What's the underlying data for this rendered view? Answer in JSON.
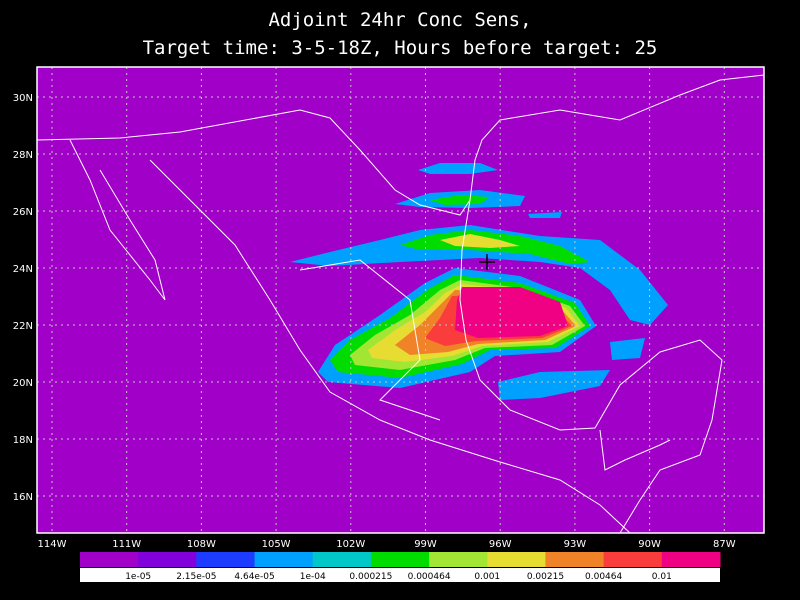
{
  "title": {
    "line1": "Adjoint 24hr Conc Sens,",
    "line2": "Target time: 3-5-18Z, Hours before target: 25"
  },
  "map": {
    "latitude_labels": [
      "30N",
      "28N",
      "26N",
      "24N",
      "22N",
      "20N",
      "18N",
      "16N"
    ],
    "longitude_labels": [
      "114W",
      "111W",
      "108W",
      "105W",
      "102W",
      "99W",
      "96W",
      "93W",
      "90W",
      "87W"
    ]
  },
  "colorbar": {
    "colors": [
      "#a000c8",
      "#8200dc",
      "#1e3cff",
      "#00a0ff",
      "#00c8c8",
      "#00dc00",
      "#a0e632",
      "#e6dc32",
      "#f08228",
      "#fa3c3c",
      "#f00082"
    ],
    "labels": [
      "1e-05",
      "2.15e-05",
      "4.64e-05",
      "1e-04",
      "0.000215",
      "0.000464",
      "0.001",
      "0.00215",
      "0.00464",
      "0.01"
    ]
  }
}
